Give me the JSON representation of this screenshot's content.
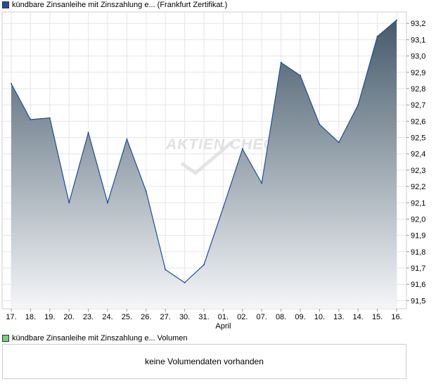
{
  "legend": {
    "price_label": "kündbare Zinsanleihe mit Zinszahlung e...  (Frankfurt Zertifikat.)",
    "price_color": "#1f4e9b",
    "volume_label": "kündbare Zinsanleihe mit Zinszahlung e...  Volumen",
    "volume_color": "#6fd36f"
  },
  "watermark": "AKTIEN CHECK",
  "volume_panel": {
    "message": "keine Volumendaten vorhanden"
  },
  "chart_data": {
    "type": "area",
    "categories": [
      "17.",
      "18.",
      "19.",
      "20.",
      "23.",
      "24.",
      "25.",
      "26.",
      "27.",
      "30.",
      "31.",
      "01.",
      "02.",
      "07.",
      "08.",
      "09.",
      "10.",
      "13.",
      "14.",
      "15.",
      "16."
    ],
    "values": [
      92.83,
      92.61,
      92.62,
      92.1,
      92.53,
      92.1,
      92.49,
      92.17,
      91.69,
      91.61,
      91.72,
      92.07,
      92.43,
      92.22,
      92.96,
      92.88,
      92.58,
      92.47,
      92.7,
      93.12,
      93.22
    ],
    "month_marker": {
      "category": "01.",
      "label": "April"
    },
    "y_ticks": [
      91.5,
      91.6,
      91.7,
      91.8,
      91.9,
      92.0,
      92.1,
      92.2,
      92.3,
      92.4,
      92.5,
      92.6,
      92.7,
      92.8,
      92.9,
      93.0,
      93.1,
      93.2
    ],
    "y_tick_labels": [
      "91,5",
      "91,6",
      "91,7",
      "91,8",
      "91,9",
      "92,0",
      "92,1",
      "92,2",
      "92,3",
      "92,4",
      "92,5",
      "92,6",
      "92,7",
      "92,8",
      "92,9",
      "93,0",
      "93,1",
      "93,2"
    ],
    "ylim": [
      91.45,
      93.27
    ],
    "grid": true,
    "line_color": "#1f4e9b",
    "fill_top_color": "#455a6b",
    "fill_bottom_color": "#f5f6f8",
    "title": "",
    "xlabel": "",
    "ylabel": ""
  }
}
